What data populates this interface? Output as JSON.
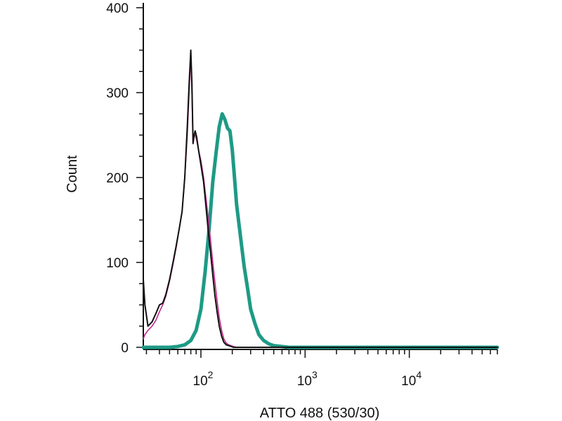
{
  "chart_data": {
    "type": "line",
    "title": "",
    "xlabel": "ATTO 488 (530/30)",
    "ylabel": "Count",
    "x_scale": "log",
    "xlim": [
      28,
      70000
    ],
    "ylim": [
      0,
      400
    ],
    "y_ticks": [
      {
        "value": 0,
        "label": "0"
      },
      {
        "value": 100,
        "label": "100"
      },
      {
        "value": 200,
        "label": "200"
      },
      {
        "value": 300,
        "label": "300"
      },
      {
        "value": 400,
        "label": "400"
      }
    ],
    "x_ticks": [
      {
        "value": 100,
        "base": "10",
        "exp": "2"
      },
      {
        "value": 1000,
        "base": "10",
        "exp": "3"
      },
      {
        "value": 10000,
        "base": "10",
        "exp": "4"
      }
    ],
    "grid": false,
    "legend": "none",
    "series": [
      {
        "id": "black",
        "color": "#111111",
        "x": [
          28,
          29,
          31,
          34,
          37,
          40,
          43,
          46,
          50,
          54,
          58,
          62,
          66,
          70,
          74,
          77,
          80,
          82,
          84,
          86,
          88,
          91,
          95,
          100,
          106,
          112,
          118,
          124,
          130,
          136,
          143,
          150,
          158,
          166,
          175,
          185,
          195,
          205,
          220,
          240,
          260,
          300,
          350,
          500,
          1000,
          70000
        ],
        "y": [
          80,
          50,
          25,
          30,
          40,
          50,
          52,
          62,
          80,
          100,
          120,
          140,
          160,
          200,
          260,
          310,
          350,
          310,
          240,
          250,
          255,
          248,
          232,
          215,
          195,
          165,
          135,
          110,
          85,
          62,
          42,
          25,
          13,
          6,
          3,
          2,
          1,
          0,
          0,
          0,
          0,
          0,
          0,
          0,
          0,
          0
        ]
      },
      {
        "id": "magenta",
        "color": "#c0288a",
        "x": [
          28,
          29,
          31,
          34,
          37,
          40,
          43,
          46,
          50,
          54,
          58,
          62,
          66,
          70,
          74,
          77,
          80,
          82,
          84,
          86,
          88,
          91,
          95,
          100,
          106,
          112,
          118,
          124,
          130,
          136,
          143,
          150,
          158,
          166,
          175,
          185,
          195,
          205,
          220,
          240,
          260,
          300,
          350,
          500,
          1000,
          70000
        ],
        "y": [
          10,
          15,
          20,
          25,
          32,
          42,
          50,
          60,
          78,
          98,
          118,
          140,
          160,
          200,
          250,
          300,
          345,
          300,
          240,
          248,
          250,
          244,
          232,
          220,
          200,
          175,
          150,
          125,
          100,
          78,
          55,
          35,
          20,
          10,
          5,
          3,
          2,
          1,
          0,
          0,
          0,
          0,
          0,
          0,
          0,
          0
        ]
      },
      {
        "id": "teal",
        "color": "#1e9a86",
        "x": [
          28,
          40,
          50,
          60,
          70,
          80,
          90,
          100,
          110,
          120,
          130,
          140,
          150,
          160,
          170,
          180,
          190,
          200,
          210,
          220,
          240,
          260,
          280,
          300,
          330,
          360,
          400,
          450,
          500,
          600,
          700,
          1000,
          70000
        ],
        "y": [
          0,
          0,
          0,
          1,
          3,
          8,
          20,
          45,
          90,
          140,
          195,
          230,
          260,
          275,
          268,
          258,
          255,
          232,
          200,
          168,
          130,
          95,
          70,
          45,
          28,
          15,
          8,
          4,
          2,
          1,
          0,
          0,
          0
        ]
      }
    ]
  }
}
